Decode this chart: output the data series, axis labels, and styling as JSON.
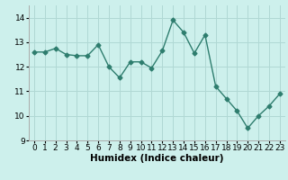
{
  "x": [
    0,
    1,
    2,
    3,
    4,
    5,
    6,
    7,
    8,
    9,
    10,
    11,
    12,
    13,
    14,
    15,
    16,
    17,
    18,
    19,
    20,
    21,
    22,
    23
  ],
  "y": [
    12.6,
    12.6,
    12.75,
    12.5,
    12.45,
    12.45,
    12.9,
    12.0,
    11.55,
    12.2,
    12.2,
    11.95,
    12.65,
    13.9,
    13.4,
    12.55,
    13.3,
    11.2,
    10.7,
    10.2,
    9.5,
    10.0,
    10.4,
    10.9
  ],
  "line_color": "#2e7d6e",
  "marker": "D",
  "markersize": 2.5,
  "linewidth": 1.0,
  "bg_color": "#cdf0ec",
  "grid_color": "#b0d8d4",
  "xlabel": "Humidex (Indice chaleur)",
  "xlabel_fontsize": 7.5,
  "xlabel_fontweight": "bold",
  "ylim": [
    9,
    14.5
  ],
  "yticks": [
    9,
    10,
    11,
    12,
    13,
    14
  ],
  "xticks": [
    0,
    1,
    2,
    3,
    4,
    5,
    6,
    7,
    8,
    9,
    10,
    11,
    12,
    13,
    14,
    15,
    16,
    17,
    18,
    19,
    20,
    21,
    22,
    23
  ],
  "tick_labelsize": 6.5
}
